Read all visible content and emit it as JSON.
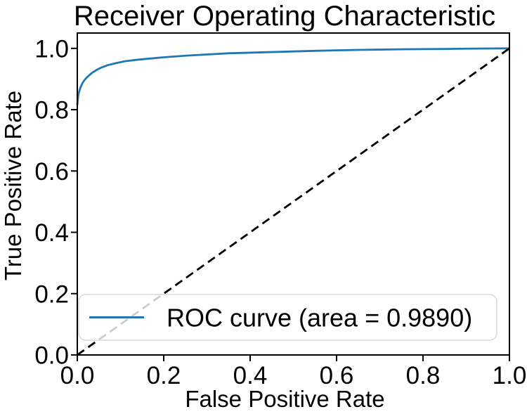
{
  "figure": {
    "background": "#ffffff",
    "text_color": "#000000",
    "spine_color": "#000000",
    "legend_border_color": "#d9d9d9",
    "legend_fill": "#ffffff"
  },
  "chart_data": {
    "type": "line",
    "title": "Receiver Operating Characteristic",
    "xlabel": "False Positive Rate",
    "ylabel": "True Positive Rate",
    "xlim": [
      0.0,
      1.0
    ],
    "ylim": [
      0.0,
      1.05
    ],
    "x_ticks": [
      0.0,
      0.2,
      0.4,
      0.6,
      0.8,
      1.0
    ],
    "x_tick_labels": [
      "0.0",
      "0.2",
      "0.4",
      "0.6",
      "0.8",
      "1.0"
    ],
    "y_ticks": [
      0.0,
      0.2,
      0.4,
      0.6,
      0.8,
      1.0
    ],
    "y_tick_labels": [
      "0.0",
      "0.2",
      "0.4",
      "0.6",
      "0.8",
      "1.0"
    ],
    "grid": false,
    "auc": 0.989,
    "legend": {
      "position": "lower-left",
      "entries": [
        {
          "label": "ROC curve (area = 0.9890)",
          "color": "#1f77b4",
          "line_style": "solid"
        }
      ]
    },
    "series": [
      {
        "name": "ROC curve",
        "color": "#1f77b4",
        "line_style": "solid",
        "points": [
          [
            0.0,
            0.815
          ],
          [
            0.001,
            0.83
          ],
          [
            0.002,
            0.843
          ],
          [
            0.003,
            0.852
          ],
          [
            0.005,
            0.862
          ],
          [
            0.007,
            0.871
          ],
          [
            0.01,
            0.881
          ],
          [
            0.013,
            0.889
          ],
          [
            0.017,
            0.897
          ],
          [
            0.022,
            0.905
          ],
          [
            0.028,
            0.913
          ],
          [
            0.035,
            0.921
          ],
          [
            0.045,
            0.93
          ],
          [
            0.055,
            0.937
          ],
          [
            0.07,
            0.945
          ],
          [
            0.09,
            0.952
          ],
          [
            0.11,
            0.958
          ],
          [
            0.14,
            0.963
          ],
          [
            0.17,
            0.967
          ],
          [
            0.2,
            0.971
          ],
          [
            0.25,
            0.976
          ],
          [
            0.3,
            0.98
          ],
          [
            0.35,
            0.984
          ],
          [
            0.4,
            0.986
          ],
          [
            0.45,
            0.988
          ],
          [
            0.5,
            0.99
          ],
          [
            0.55,
            0.992
          ],
          [
            0.6,
            0.9935
          ],
          [
            0.65,
            0.995
          ],
          [
            0.7,
            0.996
          ],
          [
            0.75,
            0.997
          ],
          [
            0.8,
            0.9975
          ],
          [
            0.85,
            0.998
          ],
          [
            0.9,
            0.999
          ],
          [
            0.95,
            0.9995
          ],
          [
            1.0,
            1.0
          ]
        ]
      },
      {
        "name": "Chance diagonal",
        "color": "#000000",
        "line_style": "dashed",
        "points": [
          [
            0.0,
            0.0
          ],
          [
            1.0,
            1.0
          ]
        ]
      }
    ]
  }
}
